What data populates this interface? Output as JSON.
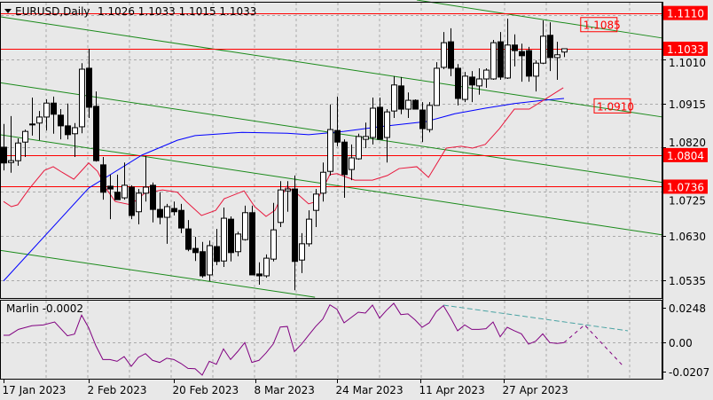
{
  "window": {
    "symbol_label": "EURUSD,Daily",
    "ohlc_label": "1.1026 1.1033 1.1015 1.1033",
    "menu_icon": "triangle-down-icon"
  },
  "chart_data": [
    {
      "type": "candlestick",
      "title": "EURUSD,Daily",
      "grid": true,
      "ylim": [
        1.0495,
        1.1138
      ],
      "y_ticks": [
        "1.1010",
        "1.0915",
        "1.0820",
        "1.0725",
        "1.0630",
        "1.0535"
      ],
      "x_ticks": [
        {
          "bar": 0,
          "label": "17 Jan 2023"
        },
        {
          "bar": 12,
          "label": "2 Feb 2023"
        },
        {
          "bar": 24,
          "label": "20 Feb 2023"
        },
        {
          "bar": 35.5,
          "label": "8 Mar 2023"
        },
        {
          "bar": 47,
          "label": "24 Mar 2023"
        },
        {
          "bar": 58.75,
          "label": "11 Apr 2023"
        },
        {
          "bar": 70.5,
          "label": "27 Apr 2023"
        }
      ],
      "colors": {
        "bull": "#ffffff",
        "bear": "#000000",
        "outline": "#000000",
        "ma_fast": "#e8173c",
        "ma_slow": "#0000ff",
        "channel": "#1a8a1a",
        "level": "#ff0000",
        "background": "#e8e8e8"
      },
      "ohlc": [
        [
          1.0821,
          1.0871,
          1.0771,
          1.0787
        ],
        [
          1.0788,
          1.0888,
          1.0766,
          1.0792
        ],
        [
          1.0792,
          1.084,
          1.0781,
          1.083
        ],
        [
          1.0832,
          1.0859,
          1.08,
          1.0855
        ],
        [
          1.0871,
          1.0928,
          1.0846,
          1.0869
        ],
        [
          1.0873,
          1.0899,
          1.0836,
          1.0886
        ],
        [
          1.0886,
          1.0924,
          1.0857,
          1.0916
        ],
        [
          1.0916,
          1.093,
          1.085,
          1.0892
        ],
        [
          1.089,
          1.0903,
          1.0838,
          1.0867
        ],
        [
          1.0867,
          1.0915,
          1.0838,
          1.0848
        ],
        [
          1.085,
          1.0873,
          1.08,
          1.0863
        ],
        [
          1.0865,
          1.1002,
          1.0851,
          1.0989
        ],
        [
          1.0991,
          1.1033,
          1.0884,
          1.0907
        ],
        [
          1.0909,
          1.0941,
          1.079,
          1.0792
        ],
        [
          1.0783,
          1.08,
          1.0708,
          1.0724
        ],
        [
          1.0737,
          1.0762,
          1.0666,
          1.0731
        ],
        [
          1.0724,
          1.0762,
          1.0708,
          1.0708
        ],
        [
          1.0712,
          1.0788,
          1.0708,
          1.0739
        ],
        [
          1.0735,
          1.0739,
          1.0666,
          1.0674
        ],
        [
          1.0682,
          1.0731,
          1.0655,
          1.0722
        ],
        [
          1.0722,
          1.0802,
          1.0704,
          1.0735
        ],
        [
          1.0739,
          1.0745,
          1.0659,
          1.0687
        ],
        [
          1.0687,
          1.0724,
          1.0655,
          1.067
        ],
        [
          1.067,
          1.0699,
          1.0613,
          1.0693
        ],
        [
          1.0689,
          1.0704,
          1.0674,
          1.0682
        ],
        [
          1.0685,
          1.0699,
          1.0636,
          1.0647
        ],
        [
          1.0645,
          1.0664,
          1.0597,
          1.0601
        ],
        [
          1.0603,
          1.0628,
          1.0576,
          1.0594
        ],
        [
          1.0596,
          1.0617,
          1.054,
          1.0544
        ],
        [
          1.0546,
          1.062,
          1.0533,
          1.0609
        ],
        [
          1.0607,
          1.0645,
          1.0567,
          1.0575
        ],
        [
          1.0576,
          1.0691,
          1.0563,
          1.0668
        ],
        [
          1.0666,
          1.0672,
          1.0575,
          1.0594
        ],
        [
          1.0596,
          1.0639,
          1.0586,
          1.0634
        ],
        [
          1.0622,
          1.0695,
          1.062,
          1.068
        ],
        [
          1.068,
          1.0695,
          1.0546,
          1.0546
        ],
        [
          1.0548,
          1.0573,
          1.0525,
          1.0544
        ],
        [
          1.0544,
          1.059,
          1.054,
          1.0582
        ],
        [
          1.058,
          1.0701,
          1.0575,
          1.0643
        ],
        [
          1.0659,
          1.0748,
          1.0649,
          1.0729
        ],
        [
          1.0727,
          1.0748,
          1.0682,
          1.0731
        ],
        [
          1.0731,
          1.076,
          1.0513,
          1.0575
        ],
        [
          1.0578,
          1.0636,
          1.055,
          1.0613
        ],
        [
          1.0613,
          1.0685,
          1.0607,
          1.0666
        ],
        [
          1.0685,
          1.0731,
          1.0649,
          1.072
        ],
        [
          1.0722,
          1.0788,
          1.0704,
          1.0767
        ],
        [
          1.0769,
          1.0913,
          1.076,
          1.0859
        ],
        [
          1.0857,
          1.093,
          1.0823,
          1.0832
        ],
        [
          1.0832,
          1.0838,
          1.0712,
          1.0762
        ],
        [
          1.0773,
          1.0827,
          1.075,
          1.0798
        ],
        [
          1.0796,
          1.085,
          1.0794,
          1.0844
        ],
        [
          1.0838,
          1.0874,
          1.0819,
          1.0844
        ],
        [
          1.0842,
          1.0928,
          1.0827,
          1.0905
        ],
        [
          1.0907,
          1.0928,
          1.0838,
          1.0838
        ],
        [
          1.0842,
          1.0903,
          1.0788,
          1.0897
        ],
        [
          1.0899,
          1.0974,
          1.0884,
          1.0955
        ],
        [
          1.0953,
          1.0972,
          1.0892,
          1.0903
        ],
        [
          1.0903,
          1.0939,
          1.0884,
          1.0922
        ],
        [
          1.0922,
          1.0924,
          1.0903,
          1.0903
        ],
        [
          1.0901,
          1.0918,
          1.0832,
          1.0861
        ],
        [
          1.0859,
          1.0918,
          1.0853,
          1.0911
        ],
        [
          1.0911,
          1.1004,
          1.0911,
          1.0991
        ],
        [
          1.0993,
          1.1069,
          1.0989,
          1.1046
        ],
        [
          1.1048,
          1.1077,
          1.0974,
          1.0991
        ],
        [
          1.0991,
          1.1,
          1.0911,
          1.0926
        ],
        [
          1.0924,
          1.0983,
          1.0918,
          1.0974
        ],
        [
          1.0972,
          1.0985,
          1.0918,
          1.0955
        ],
        [
          1.0953,
          1.0991,
          1.0934,
          1.0968
        ],
        [
          1.0968,
          1.0991,
          1.0949,
          1.0987
        ],
        [
          1.0968,
          1.1052,
          1.0966,
          1.1046
        ],
        [
          1.1048,
          1.1069,
          1.0966,
          1.0972
        ],
        [
          1.097,
          1.1098,
          1.0968,
          1.1041
        ],
        [
          1.1041,
          1.1064,
          1.0995,
          1.1029
        ],
        [
          1.1027,
          1.1044,
          1.0962,
          1.1018
        ],
        [
          1.1029,
          1.1037,
          1.0962,
          1.0974
        ],
        [
          1.0974,
          1.1008,
          1.0941,
          1.1002
        ],
        [
          1.1002,
          1.1094,
          1.1,
          1.106
        ],
        [
          1.1062,
          1.109,
          1.0985,
          1.1014
        ],
        [
          1.1014,
          1.1048,
          1.0966,
          1.102
        ],
        [
          1.1026,
          1.1033,
          1.1015,
          1.1033
        ]
      ],
      "ma_slow": [
        [
          0,
          1.0533
        ],
        [
          12,
          1.0733
        ],
        [
          19.5,
          1.0804
        ],
        [
          24.5,
          1.0836
        ],
        [
          27,
          1.0846
        ],
        [
          33.6,
          1.0853
        ],
        [
          40,
          1.0851
        ],
        [
          43,
          1.0848
        ],
        [
          48,
          1.0855
        ],
        [
          53,
          1.0865
        ],
        [
          59.5,
          1.0876
        ],
        [
          63.6,
          1.0893
        ],
        [
          67.9,
          1.0905
        ],
        [
          72,
          1.0915
        ],
        [
          76,
          1.0922
        ],
        [
          79,
          1.0926
        ]
      ],
      "ma_fast": [
        [
          0,
          1.0704
        ],
        [
          1.1,
          1.0693
        ],
        [
          2,
          1.0697
        ],
        [
          3.6,
          1.0731
        ],
        [
          5.75,
          1.0771
        ],
        [
          7,
          1.0779
        ],
        [
          8.25,
          1.0767
        ],
        [
          9.9,
          1.0752
        ],
        [
          12,
          1.0787
        ],
        [
          13.25,
          1.0769
        ],
        [
          14.5,
          1.0731
        ],
        [
          15.75,
          1.0704
        ],
        [
          17.9,
          1.0697
        ],
        [
          19.9,
          1.0722
        ],
        [
          22.4,
          1.0729
        ],
        [
          24.5,
          1.0724
        ],
        [
          25.75,
          1.0704
        ],
        [
          27.9,
          1.0674
        ],
        [
          29.9,
          1.0685
        ],
        [
          31.1,
          1.071
        ],
        [
          33.9,
          1.0727
        ],
        [
          35.4,
          1.0693
        ],
        [
          37,
          1.0672
        ],
        [
          38.25,
          1.0685
        ],
        [
          39.9,
          1.0737
        ],
        [
          41.6,
          1.0718
        ],
        [
          43,
          1.0699
        ],
        [
          44.1,
          1.0704
        ],
        [
          46,
          1.0762
        ],
        [
          47,
          1.0764
        ],
        [
          49.5,
          1.075
        ],
        [
          52,
          1.075
        ],
        [
          54.1,
          1.076
        ],
        [
          55.75,
          1.0775
        ],
        [
          58.25,
          1.0779
        ],
        [
          59.9,
          1.0756
        ],
        [
          62.4,
          1.0819
        ],
        [
          64.5,
          1.0823
        ],
        [
          66.1,
          1.0819
        ],
        [
          67.9,
          1.0827
        ],
        [
          69.9,
          1.0861
        ],
        [
          72,
          1.0903
        ],
        [
          74.1,
          1.0903
        ],
        [
          76.1,
          1.0922
        ],
        [
          78.9,
          1.0949
        ]
      ],
      "channel_lines": [
        [
          [
            -0.5,
            1.1102
          ],
          [
            92.9,
            1.0886
          ]
        ],
        [
          [
            58.25,
            1.1138
          ],
          [
            92.9,
            1.1056
          ]
        ],
        [
          [
            -0.5,
            1.096
          ],
          [
            92.9,
            1.0745
          ]
        ],
        [
          [
            -0.5,
            1.0848
          ],
          [
            92.9,
            1.0632
          ]
        ],
        [
          [
            -0.5,
            1.0599
          ],
          [
            43.9,
            1.0498
          ]
        ]
      ],
      "levels": [
        {
          "price": 1.111,
          "label": "1.1110"
        },
        {
          "price": 1.1033,
          "label": "1.1033"
        },
        {
          "price": 1.0804,
          "label": "1.0804"
        },
        {
          "price": 1.0736,
          "label": "1.0736"
        }
      ],
      "annotations": [
        {
          "bar": 81.6,
          "price": 1.1085,
          "label": "1.1085"
        },
        {
          "bar": 83.5,
          "price": 1.091,
          "label": "1.0910"
        }
      ]
    },
    {
      "type": "line",
      "title": "Marlin -0.0002",
      "indicator_name": "Marlin",
      "current_value": "-0.0002",
      "ylim": [
        -0.026,
        0.03
      ],
      "y_ticks": [
        "0.0248",
        "0.00",
        "-0.0207"
      ],
      "colors": {
        "line": "#800080",
        "trend": "#4aa3a3"
      },
      "values": [
        [
          0,
          0.0051
        ],
        [
          0.8,
          0.0051
        ],
        [
          2.1,
          0.0093
        ],
        [
          4,
          0.0119
        ],
        [
          5.6,
          0.0125
        ],
        [
          7.2,
          0.0146
        ],
        [
          9,
          0.0047
        ],
        [
          10,
          0.0059
        ],
        [
          11,
          0.0195
        ],
        [
          12,
          0.0104
        ],
        [
          13,
          -0.0023
        ],
        [
          14,
          -0.0123
        ],
        [
          15,
          -0.0123
        ],
        [
          16,
          -0.0136
        ],
        [
          17,
          -0.0102
        ],
        [
          18,
          -0.0172
        ],
        [
          19,
          -0.0108
        ],
        [
          20,
          -0.0081
        ],
        [
          21,
          -0.0129
        ],
        [
          22,
          -0.0144
        ],
        [
          23,
          -0.0114
        ],
        [
          24,
          -0.0123
        ],
        [
          25,
          -0.0151
        ],
        [
          26,
          -0.0187
        ],
        [
          27,
          -0.0189
        ],
        [
          28,
          -0.0235
        ],
        [
          29,
          -0.0136
        ],
        [
          30,
          -0.0157
        ],
        [
          31,
          -0.0047
        ],
        [
          32,
          -0.0123
        ],
        [
          33,
          -0.0066
        ],
        [
          34,
          -0.0002
        ],
        [
          35,
          -0.0144
        ],
        [
          36,
          -0.0129
        ],
        [
          37,
          -0.0076
        ],
        [
          38,
          -0.0013
        ],
        [
          39,
          0.011
        ],
        [
          40,
          0.0114
        ],
        [
          41,
          -0.0066
        ],
        [
          42,
          -0.0013
        ],
        [
          43,
          0.0051
        ],
        [
          44,
          0.0114
        ],
        [
          45,
          0.0167
        ],
        [
          46,
          0.0269
        ],
        [
          47,
          0.0237
        ],
        [
          48,
          0.014
        ],
        [
          49,
          0.0178
        ],
        [
          50,
          0.0216
        ],
        [
          51,
          0.021
        ],
        [
          52,
          0.0267
        ],
        [
          53,
          0.0174
        ],
        [
          54,
          0.0231
        ],
        [
          55,
          0.028
        ],
        [
          56,
          0.0199
        ],
        [
          57,
          0.0204
        ],
        [
          58,
          0.0161
        ],
        [
          59,
          0.0108
        ],
        [
          60,
          0.014
        ],
        [
          61,
          0.022
        ],
        [
          62,
          0.0263
        ],
        [
          63,
          0.0178
        ],
        [
          64,
          0.0083
        ],
        [
          65,
          0.0125
        ],
        [
          66,
          0.0093
        ],
        [
          67,
          0.0093
        ],
        [
          68,
          0.0098
        ],
        [
          69,
          0.0146
        ],
        [
          70,
          0.004
        ],
        [
          71,
          0.0108
        ],
        [
          72,
          0.0083
        ],
        [
          73,
          0.0061
        ],
        [
          74,
          -0.0013
        ],
        [
          75,
          0.0008
        ],
        [
          76,
          0.0061
        ],
        [
          77,
          -0.0002
        ],
        [
          78,
          -0.0008
        ],
        [
          79,
          -0.0002
        ]
      ],
      "forecast": [
        [
          79,
          -0.0002
        ],
        [
          81.9,
          0.0125
        ],
        [
          87.25,
          -0.0165
        ]
      ],
      "trend_line": [
        [
          62,
          0.0267
        ],
        [
          88,
          0.0083
        ]
      ]
    }
  ]
}
